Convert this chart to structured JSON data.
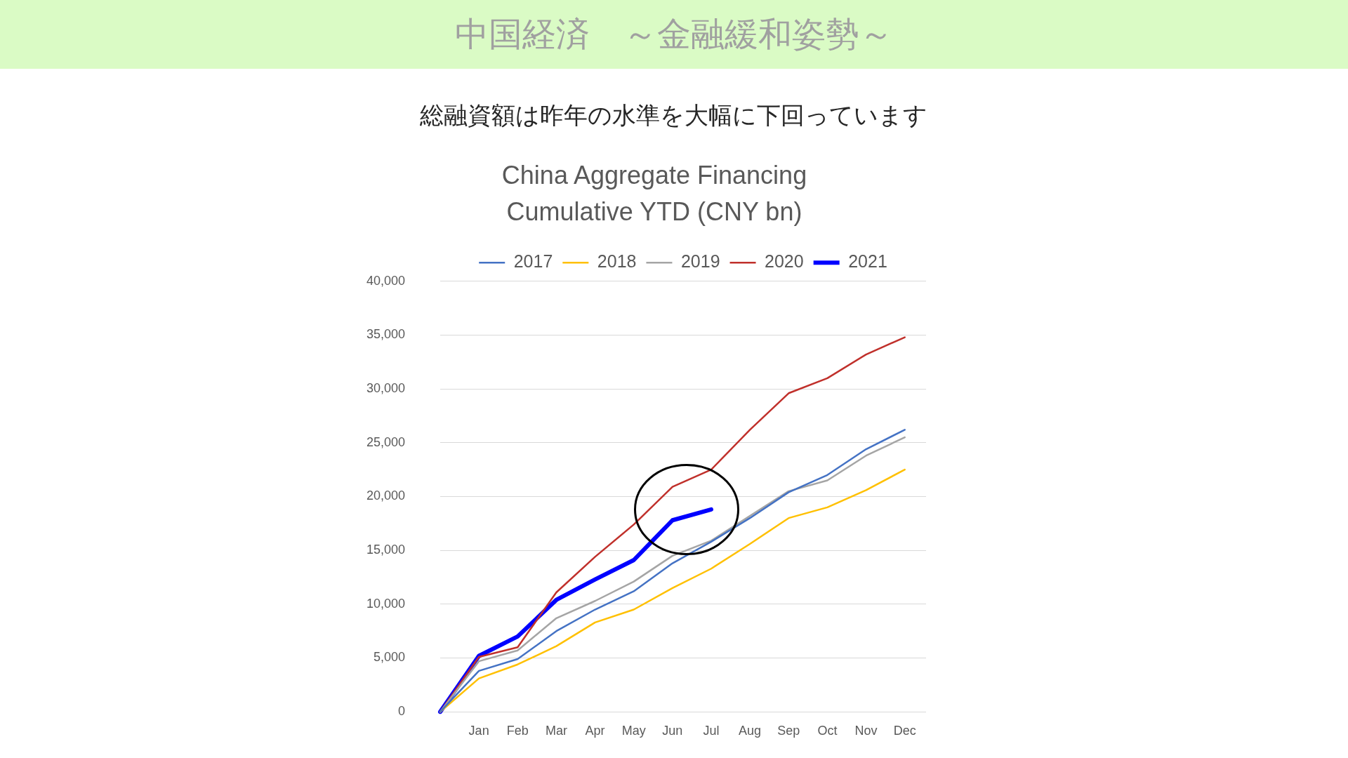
{
  "chart_data": {
    "type": "line",
    "title": "中国経済　～金融緩和姿勢～",
    "subtitle": "総融資額は昨年の水準を大幅に下回っています",
    "annotations": [
      "China Aggregate Financing Cumulative YTD (CNY bn)"
    ],
    "categories": [
      null,
      "Jan",
      "Feb",
      "Mar",
      "Apr",
      "May",
      "Jun",
      "Jul",
      "Aug",
      "Sep",
      "Oct",
      "Nov",
      "Dec"
    ],
    "series": [
      {
        "name": "2017",
        "color": "#4472c4",
        "values": [
          0,
          3800,
          4900,
          7500,
          9500,
          11200,
          13800,
          15800,
          18000,
          20400,
          22000,
          24400,
          26200
        ]
      },
      {
        "name": "2018",
        "color": "#ffc000",
        "values": [
          0,
          3100,
          4400,
          6100,
          8300,
          9500,
          11500,
          13300,
          15600,
          18000,
          19000,
          20600,
          22500
        ]
      },
      {
        "name": "2019",
        "color": "#a5a5a5",
        "values": [
          0,
          4700,
          5700,
          8700,
          10300,
          12100,
          14500,
          15900,
          18200,
          20500,
          21500,
          23800,
          25500
        ]
      },
      {
        "name": "2020",
        "color": "#c0302b",
        "values": [
          0,
          5100,
          6000,
          11100,
          14400,
          17400,
          20900,
          22500,
          26200,
          29600,
          31000,
          33200,
          34800
        ]
      },
      {
        "name": "2021",
        "color": "#0000ff",
        "values": [
          0,
          5200,
          7000,
          10400,
          12300,
          14100,
          17800,
          18800,
          null,
          null,
          null,
          null,
          null
        ]
      }
    ],
    "ylim": [
      0,
      40000
    ],
    "yticks": [
      0,
      {
        "value": 5000,
        "label": "5,000"
      },
      {
        "value": 10000,
        "label": "10,000"
      },
      {
        "value": 15000,
        "label": "15,000"
      },
      {
        "value": 20000,
        "label": "20,000"
      },
      {
        "value": 25000,
        "label": "25,000"
      },
      {
        "value": 30000,
        "label": "30,000"
      },
      {
        "value": 35000,
        "label": "35,000"
      },
      {
        "value": 40000,
        "label": "40,000"
      }
    ],
    "grid": "y",
    "legend": "top",
    "marker": "none",
    "line_style": "solid"
  }
}
